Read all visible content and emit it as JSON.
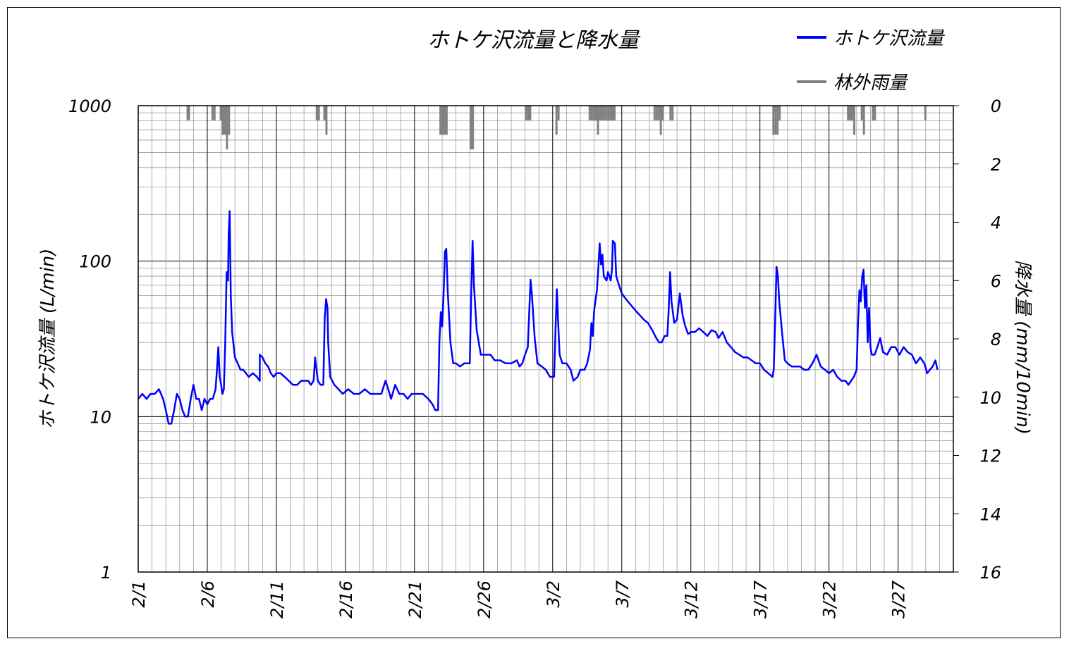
{
  "chart_data": {
    "type": "line",
    "title": "ホトケ沢流量と降水量",
    "ylabel": "ホトケ沢流量 (L/min)",
    "y2label": "降水量 (mm/10min)",
    "yscale": "log",
    "ylim": [
      1,
      1000
    ],
    "y2lim": [
      0,
      16
    ],
    "y2_inverted": true,
    "grid": true,
    "legend_position": "top-right",
    "yticks": [
      "1000",
      "100",
      "10",
      "1"
    ],
    "y2ticks": [
      "0",
      "2",
      "4",
      "6",
      "8",
      "10",
      "12",
      "14",
      "16"
    ],
    "xticks": [
      "2/1",
      "2/6",
      "2/11",
      "2/16",
      "2/21",
      "2/26",
      "3/2",
      "3/7",
      "3/12",
      "3/17",
      "3/22",
      "3/27"
    ],
    "x_range_days": [
      0,
      59
    ],
    "colors": {
      "flow": "#0000ff",
      "rain": "#808080"
    },
    "series": [
      {
        "name": "ホトケ沢流量",
        "kind": "line",
        "axis": "left",
        "points": [
          [
            0,
            13
          ],
          [
            0.3,
            14
          ],
          [
            0.6,
            13
          ],
          [
            0.9,
            14
          ],
          [
            1.2,
            14
          ],
          [
            1.5,
            15
          ],
          [
            1.8,
            13
          ],
          [
            2.0,
            11
          ],
          [
            2.2,
            9
          ],
          [
            2.4,
            9
          ],
          [
            2.6,
            11
          ],
          [
            2.8,
            14
          ],
          [
            3.0,
            13
          ],
          [
            3.2,
            11
          ],
          [
            3.4,
            10
          ],
          [
            3.6,
            10
          ],
          [
            3.8,
            13
          ],
          [
            4.0,
            16
          ],
          [
            4.2,
            13
          ],
          [
            4.4,
            13
          ],
          [
            4.6,
            11
          ],
          [
            4.8,
            13
          ],
          [
            5.0,
            12
          ],
          [
            5.2,
            13
          ],
          [
            5.4,
            13
          ],
          [
            5.6,
            15
          ],
          [
            5.7,
            20
          ],
          [
            5.8,
            28
          ],
          [
            5.9,
            18
          ],
          [
            6.0,
            16
          ],
          [
            6.1,
            14
          ],
          [
            6.2,
            15
          ],
          [
            6.3,
            30
          ],
          [
            6.4,
            85
          ],
          [
            6.5,
            75
          ],
          [
            6.55,
            150
          ],
          [
            6.62,
            210
          ],
          [
            6.7,
            60
          ],
          [
            6.8,
            35
          ],
          [
            7.0,
            24
          ],
          [
            7.2,
            22
          ],
          [
            7.4,
            20
          ],
          [
            7.6,
            20
          ],
          [
            7.8,
            19
          ],
          [
            8.0,
            18
          ],
          [
            8.3,
            19
          ],
          [
            8.6,
            18
          ],
          [
            8.8,
            17
          ],
          [
            8.8,
            25
          ],
          [
            9.0,
            24
          ],
          [
            9.2,
            22
          ],
          [
            9.4,
            21
          ],
          [
            9.6,
            19
          ],
          [
            9.8,
            18
          ],
          [
            10.0,
            19
          ],
          [
            10.3,
            19
          ],
          [
            10.6,
            18
          ],
          [
            10.9,
            17
          ],
          [
            11.2,
            16
          ],
          [
            11.5,
            16
          ],
          [
            11.8,
            17
          ],
          [
            12.0,
            17
          ],
          [
            12.3,
            17
          ],
          [
            12.5,
            16
          ],
          [
            12.7,
            17
          ],
          [
            12.8,
            24
          ],
          [
            13.0,
            17
          ],
          [
            13.2,
            16
          ],
          [
            13.4,
            16
          ],
          [
            13.5,
            43
          ],
          [
            13.6,
            57
          ],
          [
            13.7,
            50
          ],
          [
            13.75,
            30
          ],
          [
            13.9,
            18
          ],
          [
            14.2,
            16
          ],
          [
            14.5,
            15
          ],
          [
            14.8,
            14
          ],
          [
            15.2,
            15
          ],
          [
            15.6,
            14
          ],
          [
            16.0,
            14
          ],
          [
            16.4,
            15
          ],
          [
            16.8,
            14
          ],
          [
            17.2,
            14
          ],
          [
            17.6,
            14
          ],
          [
            17.9,
            17
          ],
          [
            18.1,
            15
          ],
          [
            18.3,
            13
          ],
          [
            18.6,
            16
          ],
          [
            18.9,
            14
          ],
          [
            19.2,
            14
          ],
          [
            19.5,
            13
          ],
          [
            19.8,
            14
          ],
          [
            20.2,
            14
          ],
          [
            20.6,
            14
          ],
          [
            21.0,
            13
          ],
          [
            21.3,
            12
          ],
          [
            21.5,
            11
          ],
          [
            21.7,
            11
          ],
          [
            21.8,
            30
          ],
          [
            21.9,
            47
          ],
          [
            22.0,
            38
          ],
          [
            22.1,
            60
          ],
          [
            22.2,
            115
          ],
          [
            22.3,
            120
          ],
          [
            22.4,
            65
          ],
          [
            22.6,
            30
          ],
          [
            22.8,
            22
          ],
          [
            23.0,
            22
          ],
          [
            23.3,
            21
          ],
          [
            23.6,
            22
          ],
          [
            23.9,
            22
          ],
          [
            24.0,
            22
          ],
          [
            24.1,
            60
          ],
          [
            24.2,
            135
          ],
          [
            24.3,
            70
          ],
          [
            24.5,
            36
          ],
          [
            24.8,
            25
          ],
          [
            25.0,
            25
          ],
          [
            25.5,
            25
          ],
          [
            25.8,
            23
          ],
          [
            26.2,
            23
          ],
          [
            26.6,
            22
          ],
          [
            27.0,
            22
          ],
          [
            27.4,
            23
          ],
          [
            27.6,
            21
          ],
          [
            27.8,
            22
          ],
          [
            28.0,
            25
          ],
          [
            28.2,
            28
          ],
          [
            28.4,
            76
          ],
          [
            28.5,
            60
          ],
          [
            28.7,
            32
          ],
          [
            28.9,
            22
          ],
          [
            29.2,
            21
          ],
          [
            29.5,
            20
          ],
          [
            29.8,
            18
          ],
          [
            30.1,
            18
          ],
          [
            30.2,
            35
          ],
          [
            30.3,
            66
          ],
          [
            30.4,
            40
          ],
          [
            30.5,
            25
          ],
          [
            30.7,
            22
          ],
          [
            31.0,
            22
          ],
          [
            31.3,
            20
          ],
          [
            31.5,
            17
          ],
          [
            31.8,
            18
          ],
          [
            32.0,
            20
          ],
          [
            32.3,
            20
          ],
          [
            32.5,
            22
          ],
          [
            32.7,
            27
          ],
          [
            32.8,
            40
          ],
          [
            32.9,
            33
          ],
          [
            33.0,
            48
          ],
          [
            33.2,
            65
          ],
          [
            33.3,
            90
          ],
          [
            33.4,
            130
          ],
          [
            33.5,
            95
          ],
          [
            33.6,
            110
          ],
          [
            33.7,
            80
          ],
          [
            33.9,
            75
          ],
          [
            34.0,
            85
          ],
          [
            34.1,
            80
          ],
          [
            34.2,
            75
          ],
          [
            34.3,
            90
          ],
          [
            34.35,
            135
          ],
          [
            34.5,
            130
          ],
          [
            34.6,
            80
          ],
          [
            34.8,
            70
          ],
          [
            35.0,
            62
          ],
          [
            35.3,
            57
          ],
          [
            35.6,
            53
          ],
          [
            36.0,
            48
          ],
          [
            36.3,
            45
          ],
          [
            36.6,
            42
          ],
          [
            36.9,
            40
          ],
          [
            37.2,
            36
          ],
          [
            37.5,
            32
          ],
          [
            37.7,
            30
          ],
          [
            37.9,
            30
          ],
          [
            38.1,
            33
          ],
          [
            38.3,
            33
          ],
          [
            38.4,
            50
          ],
          [
            38.5,
            85
          ],
          [
            38.6,
            55
          ],
          [
            38.8,
            40
          ],
          [
            39.0,
            42
          ],
          [
            39.2,
            62
          ],
          [
            39.4,
            45
          ],
          [
            39.6,
            38
          ],
          [
            39.8,
            34
          ],
          [
            40.0,
            35
          ],
          [
            40.3,
            35
          ],
          [
            40.6,
            37
          ],
          [
            40.9,
            35
          ],
          [
            41.2,
            33
          ],
          [
            41.5,
            36
          ],
          [
            41.8,
            35
          ],
          [
            42.0,
            32
          ],
          [
            42.3,
            35
          ],
          [
            42.6,
            30
          ],
          [
            42.9,
            28
          ],
          [
            43.2,
            26
          ],
          [
            43.5,
            25
          ],
          [
            43.8,
            24
          ],
          [
            44.1,
            24
          ],
          [
            44.4,
            23
          ],
          [
            44.7,
            22
          ],
          [
            45.0,
            22
          ],
          [
            45.3,
            20
          ],
          [
            45.6,
            19
          ],
          [
            45.9,
            18
          ],
          [
            46.0,
            20
          ],
          [
            46.1,
            40
          ],
          [
            46.2,
            92
          ],
          [
            46.3,
            80
          ],
          [
            46.4,
            55
          ],
          [
            46.6,
            35
          ],
          [
            46.8,
            23
          ],
          [
            47.0,
            22
          ],
          [
            47.3,
            21
          ],
          [
            47.6,
            21
          ],
          [
            47.9,
            21
          ],
          [
            48.2,
            20
          ],
          [
            48.5,
            20
          ],
          [
            48.8,
            22
          ],
          [
            49.1,
            25
          ],
          [
            49.4,
            21
          ],
          [
            49.7,
            20
          ],
          [
            50.0,
            19
          ],
          [
            50.3,
            20
          ],
          [
            50.6,
            18
          ],
          [
            50.9,
            17
          ],
          [
            51.2,
            17
          ],
          [
            51.4,
            16
          ],
          [
            51.6,
            17
          ],
          [
            51.8,
            18
          ],
          [
            52.0,
            20
          ],
          [
            52.1,
            40
          ],
          [
            52.2,
            65
          ],
          [
            52.3,
            55
          ],
          [
            52.4,
            80
          ],
          [
            52.5,
            88
          ],
          [
            52.6,
            50
          ],
          [
            52.7,
            70
          ],
          [
            52.8,
            30
          ],
          [
            52.9,
            50
          ],
          [
            53.0,
            28
          ],
          [
            53.1,
            25
          ],
          [
            53.3,
            25
          ],
          [
            53.5,
            28
          ],
          [
            53.7,
            32
          ],
          [
            53.9,
            26
          ],
          [
            54.2,
            25
          ],
          [
            54.5,
            28
          ],
          [
            54.8,
            28
          ],
          [
            55.1,
            25
          ],
          [
            55.4,
            28
          ],
          [
            55.7,
            26
          ],
          [
            56.0,
            25
          ],
          [
            56.3,
            22
          ],
          [
            56.6,
            24
          ],
          [
            56.9,
            22
          ],
          [
            57.1,
            19
          ],
          [
            57.3,
            20
          ],
          [
            57.5,
            21
          ],
          [
            57.7,
            23
          ],
          [
            57.85,
            20
          ]
        ]
      },
      {
        "name": "林外雨量",
        "kind": "bar",
        "axis": "right",
        "bars": [
          [
            3.5,
            0.5
          ],
          [
            3.6,
            0.5
          ],
          [
            5.3,
            0.5
          ],
          [
            5.45,
            0.5
          ],
          [
            5.9,
            0.5
          ],
          [
            6.05,
            1.0
          ],
          [
            6.2,
            1.0
          ],
          [
            6.35,
            1.5
          ],
          [
            6.5,
            1.0
          ],
          [
            12.85,
            0.5
          ],
          [
            13.0,
            0.5
          ],
          [
            13.4,
            0.5
          ],
          [
            13.55,
            1.0
          ],
          [
            21.8,
            1.0
          ],
          [
            21.95,
            1.0
          ],
          [
            22.1,
            1.0
          ],
          [
            22.25,
            1.0
          ],
          [
            24.0,
            1.5
          ],
          [
            24.15,
            1.5
          ],
          [
            28.0,
            0.5
          ],
          [
            28.15,
            0.5
          ],
          [
            28.3,
            0.5
          ],
          [
            30.2,
            1.0
          ],
          [
            30.35,
            0.5
          ],
          [
            32.6,
            0.5
          ],
          [
            32.75,
            0.5
          ],
          [
            32.9,
            0.5
          ],
          [
            33.05,
            0.5
          ],
          [
            33.2,
            1.0
          ],
          [
            33.35,
            0.5
          ],
          [
            33.5,
            0.5
          ],
          [
            33.65,
            0.5
          ],
          [
            33.8,
            0.5
          ],
          [
            33.95,
            0.5
          ],
          [
            34.1,
            0.5
          ],
          [
            34.25,
            0.5
          ],
          [
            34.4,
            0.5
          ],
          [
            37.3,
            0.5
          ],
          [
            37.45,
            0.5
          ],
          [
            37.6,
            0.5
          ],
          [
            37.75,
            1.0
          ],
          [
            37.9,
            0.5
          ],
          [
            38.45,
            0.5
          ],
          [
            38.6,
            0.5
          ],
          [
            45.9,
            1.0
          ],
          [
            46.05,
            1.0
          ],
          [
            46.2,
            1.0
          ],
          [
            46.35,
            0.5
          ],
          [
            51.3,
            0.5
          ],
          [
            51.45,
            0.5
          ],
          [
            51.6,
            0.5
          ],
          [
            51.75,
            1.0
          ],
          [
            52.3,
            0.5
          ],
          [
            52.45,
            1.0
          ],
          [
            53.1,
            0.5
          ],
          [
            53.25,
            0.5
          ],
          [
            56.9,
            0.5
          ]
        ]
      }
    ]
  }
}
